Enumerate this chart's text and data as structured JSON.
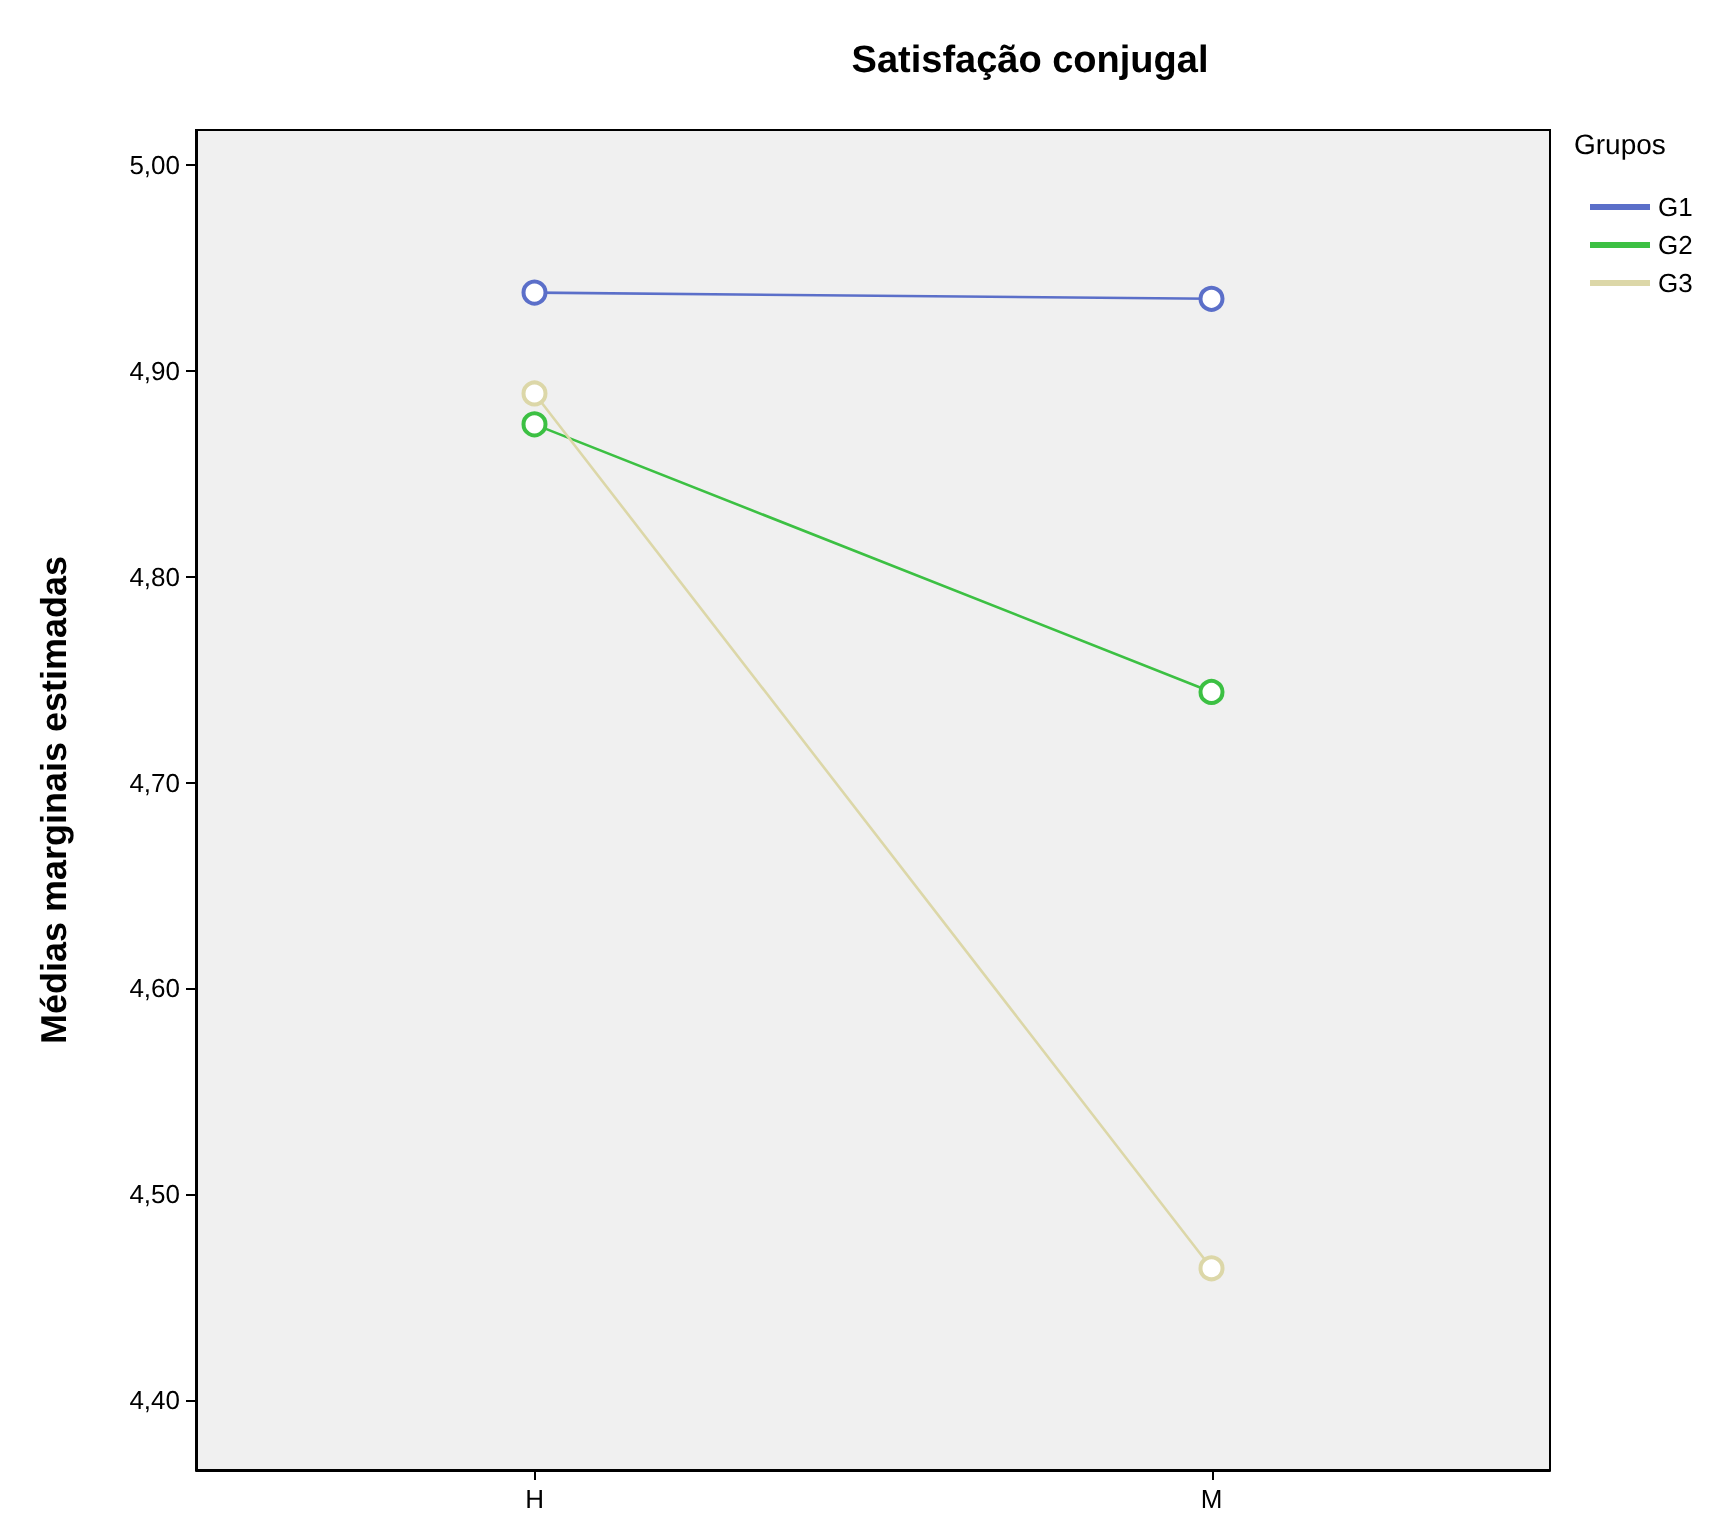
{
  "chart_data": {
    "type": "line",
    "title": "Satisfação conjugal",
    "ylabel": "Médias marginais estimadas",
    "legend_title": "Grupos",
    "categories": [
      "H",
      "M"
    ],
    "series": [
      {
        "name": "G1",
        "color": "#5b6fc9",
        "values": [
          4.938,
          4.935
        ]
      },
      {
        "name": "G2",
        "color": "#3cc043",
        "values": [
          4.874,
          4.744
        ]
      },
      {
        "name": "G3",
        "color": "#dcd7a8",
        "values": [
          4.889,
          4.464
        ]
      }
    ],
    "ylim": [
      4.366,
      5.017
    ],
    "yticks": [
      {
        "value": 4.4,
        "label": "4,40"
      },
      {
        "value": 4.5,
        "label": "4,50"
      },
      {
        "value": 4.6,
        "label": "4,60"
      },
      {
        "value": 4.7,
        "label": "4,70"
      },
      {
        "value": 4.8,
        "label": "4,80"
      },
      {
        "value": 4.9,
        "label": "4,90"
      },
      {
        "value": 5.0,
        "label": "5,00"
      }
    ],
    "grid": false,
    "legend": "top right",
    "marker": "circle",
    "line_style": "solid"
  }
}
